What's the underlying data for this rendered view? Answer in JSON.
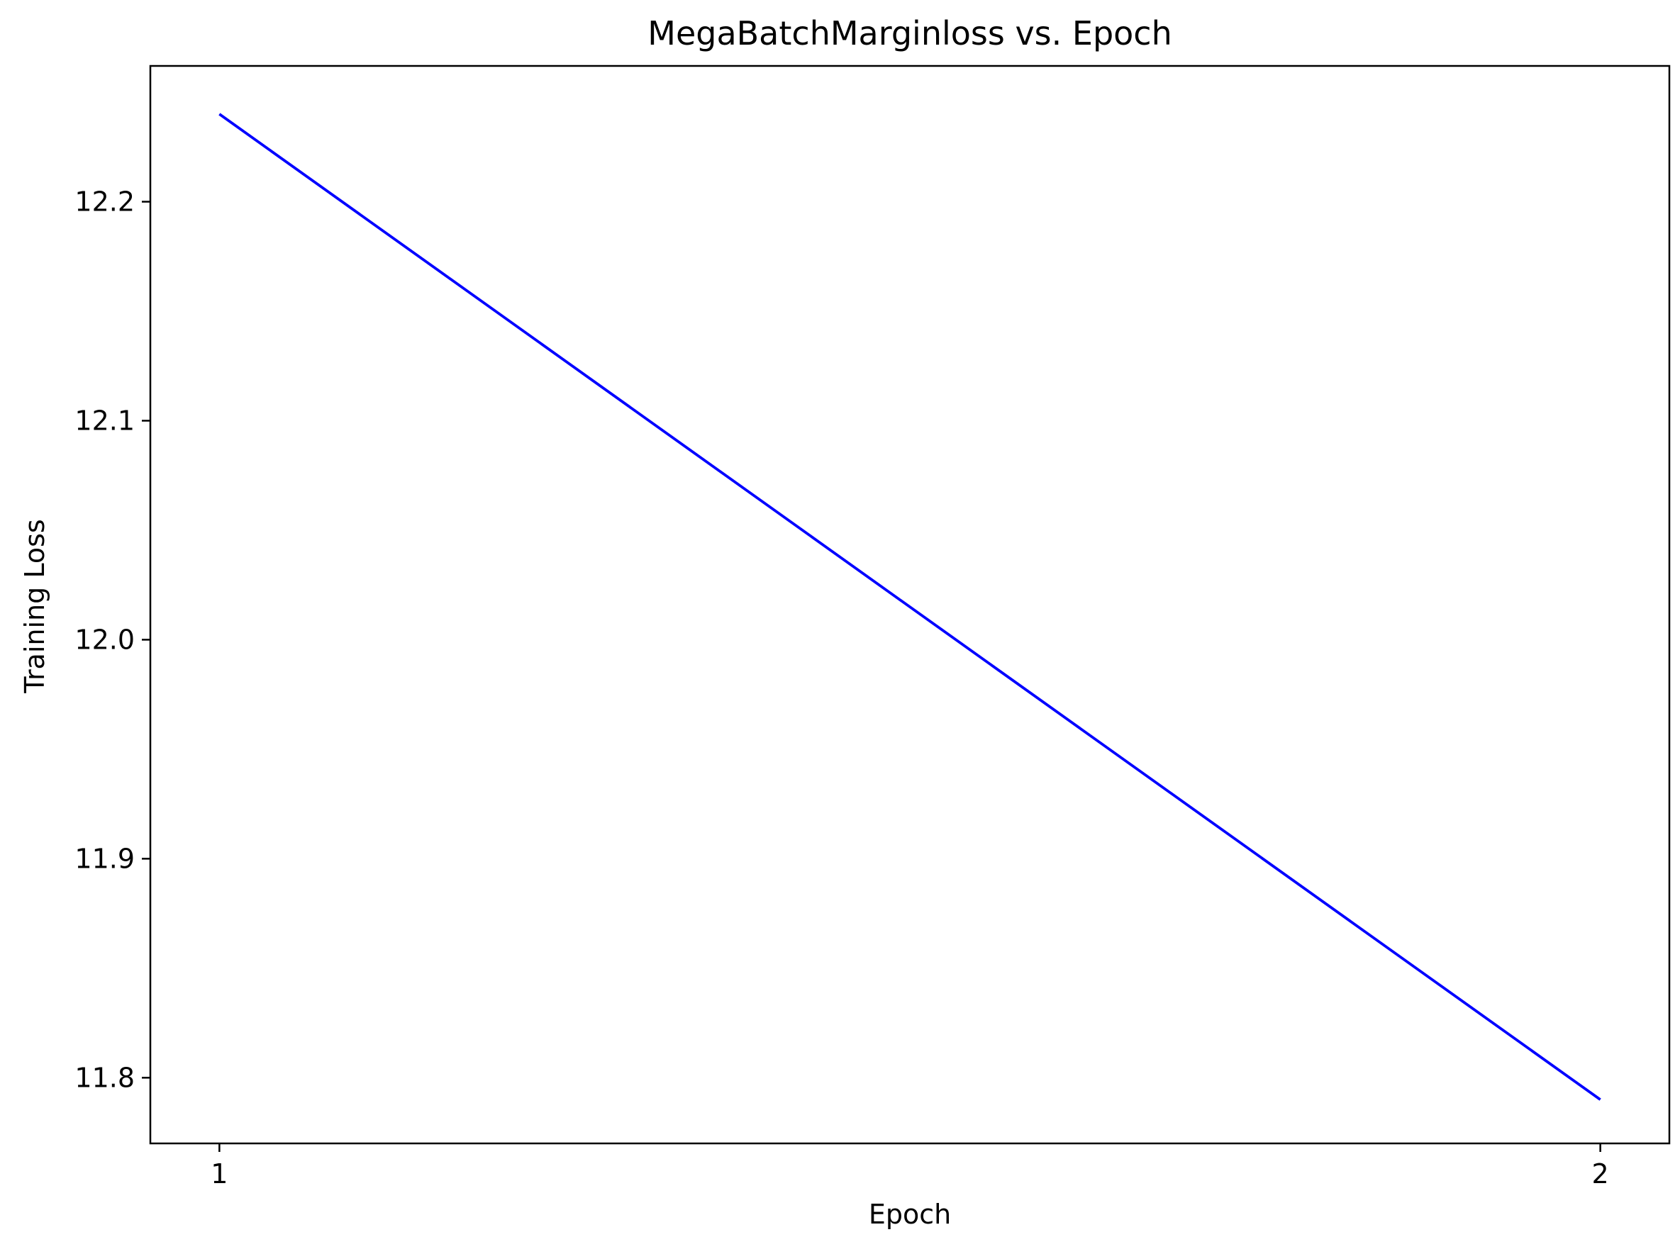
{
  "chart_data": {
    "type": "line",
    "title": "MegaBatchMarginloss vs. Epoch",
    "xlabel": "Epoch",
    "ylabel": "Training Loss",
    "x": [
      1,
      2
    ],
    "series": [
      {
        "values": [
          12.24,
          11.79
        ],
        "color": "#0000ff"
      }
    ],
    "xticks": [
      1,
      2
    ],
    "xtick_labels": [
      "1",
      "2"
    ],
    "yticks": [
      11.8,
      11.9,
      12.0,
      12.1,
      12.2
    ],
    "ytick_labels": [
      "11.8",
      "11.9",
      "12.0",
      "12.1",
      "12.2"
    ],
    "xlim": [
      0.95,
      2.05
    ],
    "ylim": [
      11.77,
      12.262
    ],
    "grid": false,
    "legend": null
  }
}
